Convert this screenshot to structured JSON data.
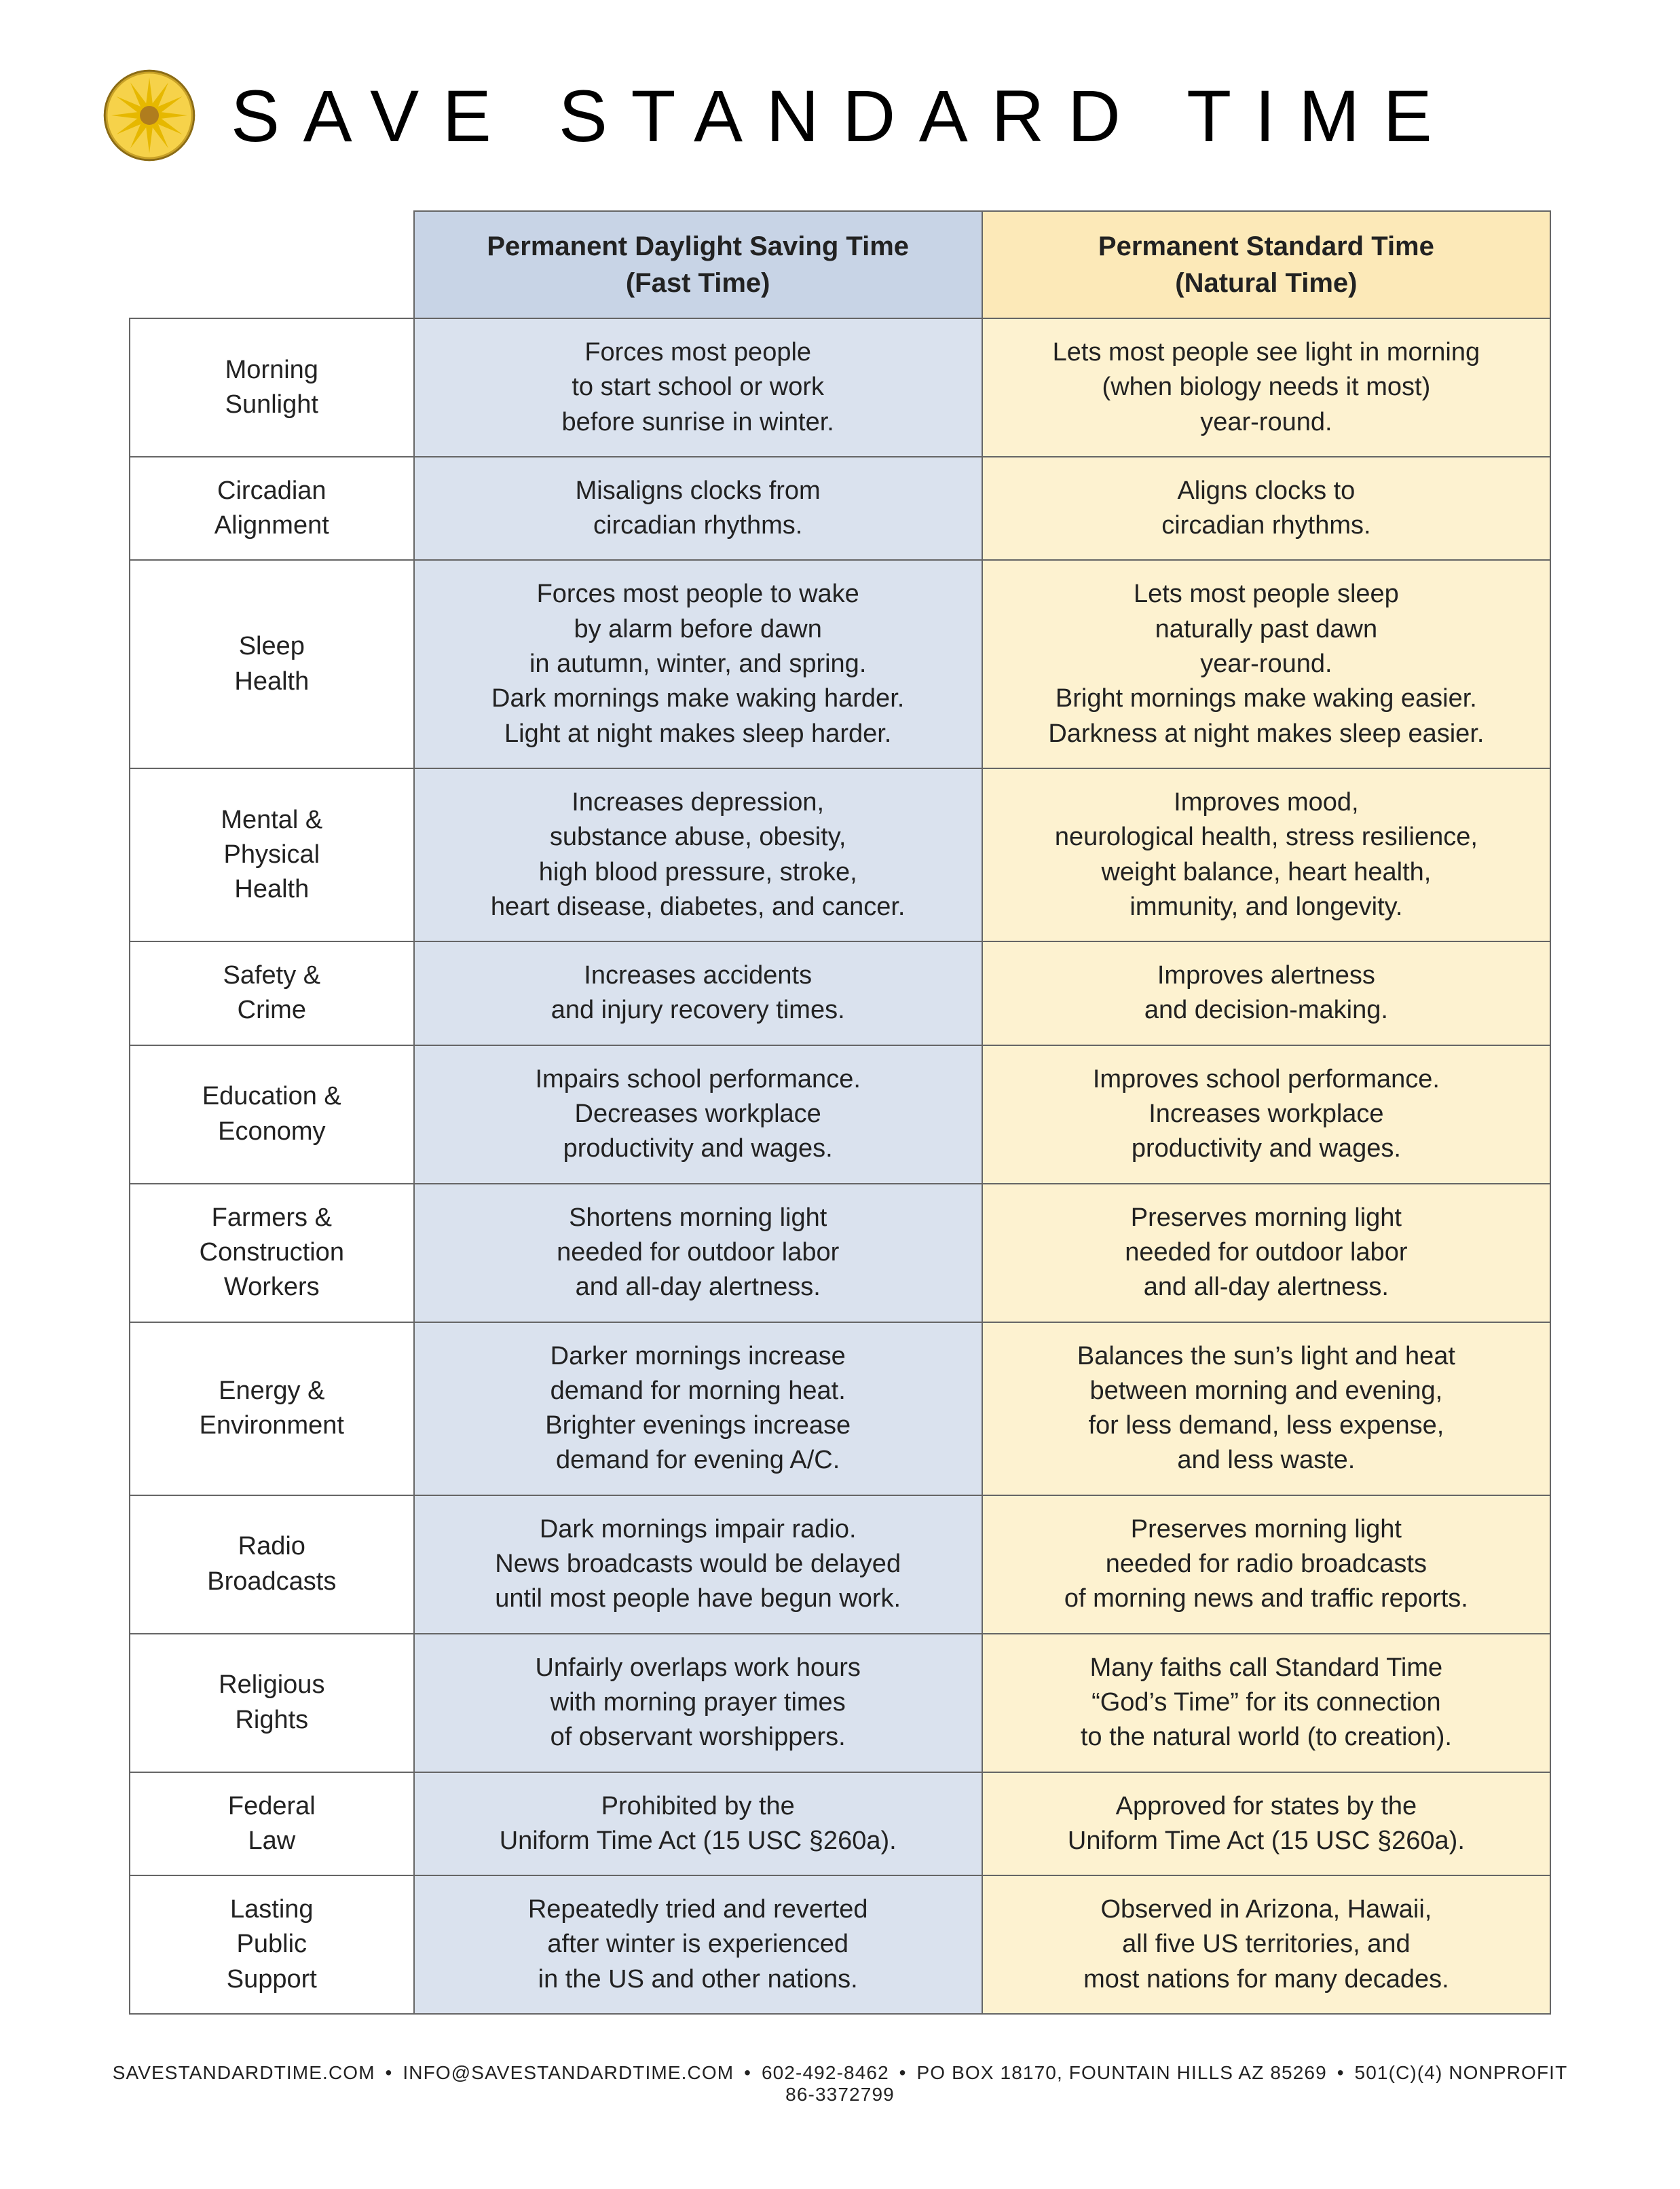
{
  "header": {
    "title": "SAVE STANDARD TIME",
    "logo_colors": {
      "outer_ring": "#c9a227",
      "face": "#f6d24a",
      "rays": "#e6b800",
      "center": "#b07d1e"
    }
  },
  "table": {
    "columns": {
      "dst": {
        "title_l1": "Permanent Daylight Saving Time",
        "title_l2": "(Fast Time)",
        "bg_header": "#c8d4e6",
        "bg_cell": "#dae2ee"
      },
      "std": {
        "title_l1": "Permanent Standard Time",
        "title_l2": "(Natural Time)",
        "bg_header": "#fce9b8",
        "bg_cell": "#fdf2d0"
      }
    },
    "rows": [
      {
        "label_l1": "Morning",
        "label_l2": "Sunlight",
        "dst": "Forces most people\nto start school or work\nbefore sunrise in winter.",
        "std": "Lets most people see light in morning\n(when biology needs it most)\nyear-round."
      },
      {
        "label_l1": "Circadian",
        "label_l2": "Alignment",
        "dst": "Misaligns clocks from\ncircadian rhythms.",
        "std": "Aligns clocks to\ncircadian rhythms."
      },
      {
        "label_l1": "Sleep",
        "label_l2": "Health",
        "dst": "Forces most people to wake\nby alarm before dawn\nin autumn, winter, and spring.\nDark mornings make waking harder.\nLight at night makes sleep harder.",
        "std": "Lets most people sleep\nnaturally past dawn\nyear-round.\nBright mornings make waking easier.\nDarkness at night makes sleep easier."
      },
      {
        "label_l1": "Mental &",
        "label_l2": "Physical",
        "label_l3": "Health",
        "dst": "Increases depression,\nsubstance abuse, obesity,\nhigh blood pressure, stroke,\nheart disease, diabetes, and cancer.",
        "std": "Improves mood,\nneurological health, stress resilience,\nweight balance, heart health,\nimmunity, and longevity."
      },
      {
        "label_l1": "Safety &",
        "label_l2": "Crime",
        "dst": "Increases accidents\nand injury recovery times.",
        "std": "Improves alertness\nand decision-making."
      },
      {
        "label_l1": "Education &",
        "label_l2": "Economy",
        "dst": "Impairs school performance.\nDecreases workplace\nproductivity and wages.",
        "std": "Improves school performance.\nIncreases workplace\nproductivity and wages."
      },
      {
        "label_l1": "Farmers &",
        "label_l2": "Construction",
        "label_l3": "Workers",
        "dst": "Shortens morning light\nneeded for outdoor labor\nand all-day alertness.",
        "std": "Preserves morning light\nneeded for outdoor labor\nand all-day alertness."
      },
      {
        "label_l1": "Energy &",
        "label_l2": "Environment",
        "dst": "Darker mornings increase\ndemand for morning heat.\nBrighter evenings increase\ndemand for evening A/C.",
        "std": "Balances the sun’s light and heat\nbetween morning and evening,\nfor less demand, less expense,\nand less waste."
      },
      {
        "label_l1": "Radio",
        "label_l2": "Broadcasts",
        "dst": "Dark mornings impair radio.\nNews broadcasts would be delayed\nuntil most people have begun work.",
        "std": "Preserves morning light\nneeded for radio broadcasts\nof morning news and traffic reports."
      },
      {
        "label_l1": "Religious",
        "label_l2": "Rights",
        "dst": "Unfairly overlaps work hours\nwith morning prayer times\nof observant worshippers.",
        "std": "Many faiths call Standard Time\n“God’s Time” for its connection\nto the natural world (to creation)."
      },
      {
        "label_l1": "Federal",
        "label_l2": "Law",
        "dst": "Prohibited by the\nUniform Time Act (15 USC §260a).",
        "std": "Approved for states by the\nUniform Time Act (15 USC §260a)."
      },
      {
        "label_l1": "Lasting",
        "label_l2": "Public",
        "label_l3": "Support",
        "dst": "Repeatedly tried and reverted\nafter winter is experienced\nin the US and other nations.",
        "std": "Observed in Arizona, Hawaii,\nall five US territories, and\nmost nations for many decades."
      }
    ]
  },
  "footer": {
    "parts": [
      "SAVESTANDARDTIME.COM",
      "INFO@SAVESTANDARDTIME.COM",
      "602-492-8462",
      "PO BOX 18170, FOUNTAIN HILLS AZ 85269",
      "501(C)(4) NONPROFIT 86-3372799"
    ],
    "separator": "•"
  }
}
